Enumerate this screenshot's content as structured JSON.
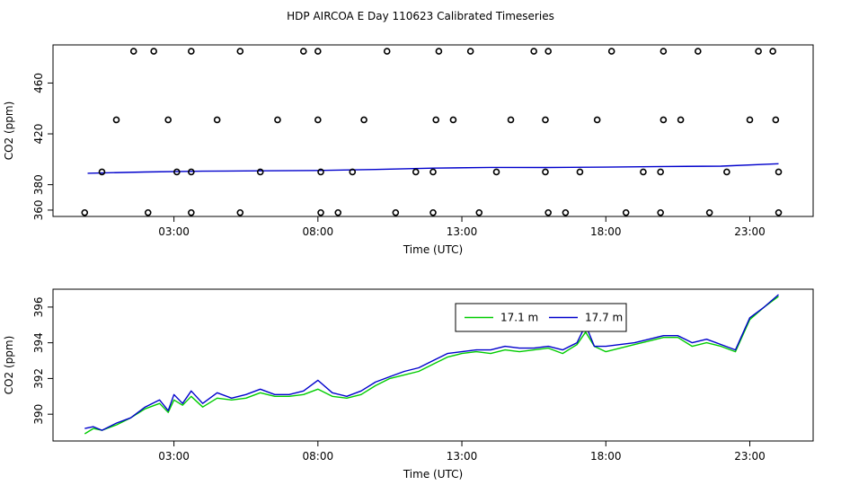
{
  "title": "HDP AIRCOA E  Day 110623  Calibrated Timeseries",
  "colors": {
    "series_green": "#00cc00",
    "series_blue": "#0000cc",
    "points": "#000000"
  },
  "chart_data": [
    {
      "type": "scatter",
      "xlabel": "Time (UTC)",
      "ylabel": "CO2 (ppm)",
      "xlim": [
        -1.2,
        25.2
      ],
      "ylim": [
        355,
        490
      ],
      "x_ticks": [
        3,
        8,
        13,
        18,
        23
      ],
      "x_tick_labels": [
        "03:00",
        "08:00",
        "13:00",
        "18:00",
        "23:00"
      ],
      "y_ticks": [
        360,
        380,
        420,
        460
      ],
      "y_tick_labels": [
        "360",
        "380",
        "420",
        "460"
      ],
      "series": [
        {
          "style": "line",
          "color": "#0000cc",
          "x": [
            0,
            2,
            4,
            6,
            8,
            10,
            12,
            14,
            16,
            18,
            20,
            22,
            24
          ],
          "y": [
            389,
            390,
            390.6,
            390.9,
            391.2,
            392,
            393,
            393.6,
            393.5,
            393.8,
            394.3,
            394.6,
            396.5
          ]
        },
        {
          "style": "points",
          "color": "#000000",
          "x": [
            1.6,
            2.3,
            3.6,
            5.3,
            7.5,
            8.0,
            10.4,
            12.2,
            13.3,
            15.5,
            16.0,
            18.2,
            20.0,
            21.2,
            23.3,
            23.8,
            1.0,
            2.8,
            4.5,
            6.6,
            8.0,
            9.6,
            12.1,
            12.7,
            14.7,
            15.9,
            17.7,
            20.0,
            20.6,
            23.0,
            23.9,
            0.5,
            3.1,
            3.6,
            6.0,
            8.1,
            9.2,
            11.4,
            12.0,
            14.2,
            15.9,
            17.1,
            19.3,
            19.9,
            22.2,
            24.0,
            -0.1,
            2.1,
            3.6,
            5.3,
            8.1,
            8.7,
            10.7,
            12.0,
            13.6,
            16.0,
            16.6,
            18.7,
            19.9,
            21.6,
            24.0
          ],
          "y": [
            485,
            485,
            485,
            485,
            485,
            485,
            485,
            485,
            485,
            485,
            485,
            485,
            485,
            485,
            485,
            485,
            431,
            431,
            431,
            431,
            431,
            431,
            431,
            431,
            431,
            431,
            431,
            431,
            431,
            431,
            431,
            390,
            390,
            390,
            390,
            390,
            390,
            390,
            390,
            390,
            390,
            390,
            390,
            390,
            390,
            390,
            358,
            358,
            358,
            358,
            358,
            358,
            358,
            358,
            358,
            358,
            358,
            358,
            358,
            358,
            358
          ]
        }
      ]
    },
    {
      "type": "line",
      "xlabel": "Time (UTC)",
      "ylabel": "CO2 (ppm)",
      "xlim": [
        -1.2,
        25.2
      ],
      "ylim": [
        388.5,
        397
      ],
      "x_ticks": [
        3,
        8,
        13,
        18,
        23
      ],
      "x_tick_labels": [
        "03:00",
        "08:00",
        "13:00",
        "18:00",
        "23:00"
      ],
      "y_ticks": [
        390,
        392,
        394,
        396
      ],
      "y_tick_labels": [
        "390",
        "392",
        "394",
        "396"
      ],
      "legend": {
        "placement": "top-center",
        "entries": [
          {
            "label": "17.1 m",
            "color": "#00cc00"
          },
          {
            "label": "17.7 m",
            "color": "#0000cc"
          }
        ]
      },
      "series": [
        {
          "name": "17.1 m",
          "color": "#00cc00",
          "x": [
            -0.1,
            0.2,
            0.5,
            1.0,
            1.5,
            2.0,
            2.5,
            2.8,
            3.0,
            3.3,
            3.6,
            4.0,
            4.5,
            5.0,
            5.5,
            6.0,
            6.5,
            7.0,
            7.5,
            8.0,
            8.5,
            9.0,
            9.5,
            10.0,
            10.5,
            11.0,
            11.5,
            12.0,
            12.5,
            13.0,
            13.5,
            14.0,
            14.5,
            15.0,
            15.5,
            16.0,
            16.5,
            17.0,
            17.3,
            17.6,
            18.0,
            18.5,
            19.0,
            19.5,
            20.0,
            20.5,
            21.0,
            21.5,
            22.0,
            22.5,
            23.0,
            23.5,
            24.0
          ],
          "y": [
            388.9,
            389.2,
            389.1,
            389.4,
            389.8,
            390.3,
            390.6,
            390.1,
            390.8,
            390.5,
            391.0,
            390.4,
            390.9,
            390.8,
            390.9,
            391.2,
            391.0,
            391.0,
            391.1,
            391.4,
            391.0,
            390.9,
            391.1,
            391.6,
            392.0,
            392.2,
            392.4,
            392.8,
            393.2,
            393.4,
            393.5,
            393.4,
            393.6,
            393.5,
            393.6,
            393.7,
            393.4,
            393.9,
            394.6,
            393.8,
            393.5,
            393.7,
            393.9,
            394.1,
            394.3,
            394.3,
            393.8,
            394.0,
            393.8,
            393.5,
            395.3,
            396.0,
            396.6
          ]
        },
        {
          "name": "17.7 m",
          "color": "#0000cc",
          "x": [
            -0.1,
            0.2,
            0.5,
            1.0,
            1.5,
            2.0,
            2.5,
            2.8,
            3.0,
            3.3,
            3.6,
            4.0,
            4.5,
            5.0,
            5.5,
            6.0,
            6.5,
            7.0,
            7.5,
            8.0,
            8.5,
            9.0,
            9.5,
            10.0,
            10.5,
            11.0,
            11.5,
            12.0,
            12.5,
            13.0,
            13.5,
            14.0,
            14.5,
            15.0,
            15.5,
            16.0,
            16.5,
            17.0,
            17.3,
            17.6,
            18.0,
            18.5,
            19.0,
            19.5,
            20.0,
            20.5,
            21.0,
            21.5,
            22.0,
            22.5,
            23.0,
            23.5,
            24.0
          ],
          "y": [
            389.2,
            389.3,
            389.1,
            389.5,
            389.8,
            390.4,
            390.8,
            390.2,
            391.1,
            390.6,
            391.3,
            390.6,
            391.2,
            390.9,
            391.1,
            391.4,
            391.1,
            391.1,
            391.3,
            391.9,
            391.2,
            391.0,
            391.3,
            391.8,
            392.1,
            392.4,
            392.6,
            393.0,
            393.4,
            393.5,
            393.6,
            393.6,
            393.8,
            393.7,
            393.7,
            393.8,
            393.6,
            394.0,
            395.0,
            393.8,
            393.8,
            393.9,
            394.0,
            394.2,
            394.4,
            394.4,
            394.0,
            394.2,
            393.9,
            393.6,
            395.4,
            396.0,
            396.7
          ]
        }
      ]
    }
  ]
}
